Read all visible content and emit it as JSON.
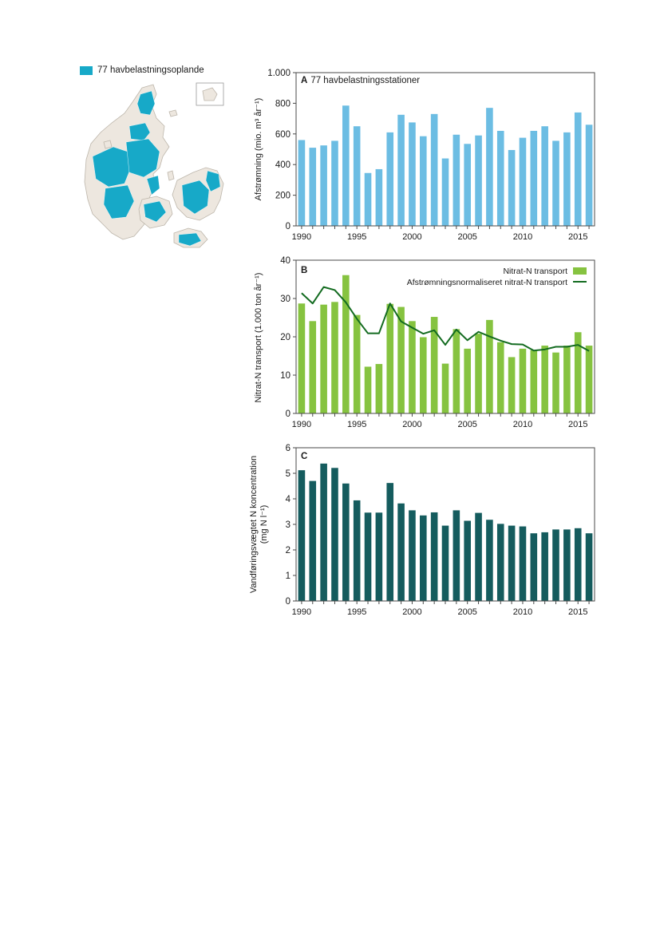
{
  "map": {
    "legend_label": "77 havbelastningsoplande",
    "colors": {
      "land": "#ede7df",
      "border": "#bdb6ab",
      "catchment": "#17a9c8",
      "inset_frame": "#9a9a9a"
    }
  },
  "chart_data": [
    {
      "id": "A",
      "type": "bar",
      "panel_letter": "A",
      "title": "77 havbelastningsstationer",
      "ylabel": "Afstrømning (mio. m³ år⁻¹)",
      "xlabel": "",
      "ylim": [
        0,
        1000
      ],
      "yticks": [
        0,
        200,
        400,
        600,
        800,
        1000
      ],
      "ytick_labels": [
        "0",
        "200",
        "400",
        "600",
        "800",
        "1.000"
      ],
      "xtick_years": [
        1990,
        1995,
        2000,
        2005,
        2010,
        2015
      ],
      "x": [
        1990,
        1991,
        1992,
        1993,
        1994,
        1995,
        1996,
        1997,
        1998,
        1999,
        2000,
        2001,
        2002,
        2003,
        2004,
        2005,
        2006,
        2007,
        2008,
        2009,
        2010,
        2011,
        2012,
        2013,
        2014,
        2015,
        2016
      ],
      "series": [
        {
          "values": [
            560,
            510,
            525,
            555,
            785,
            650,
            345,
            370,
            610,
            725,
            675,
            585,
            730,
            440,
            595,
            535,
            590,
            770,
            620,
            495,
            575,
            620,
            650,
            555,
            610,
            740,
            660
          ],
          "color": "#6cbde3"
        }
      ]
    },
    {
      "id": "B",
      "type": "bar",
      "panel_letter": "B",
      "title": "",
      "ylabel": "Nitrat-N transport (1.000 ton år⁻¹)",
      "xlabel": "",
      "ylim": [
        0,
        40
      ],
      "yticks": [
        0,
        10,
        20,
        30,
        40
      ],
      "ytick_labels": [
        "0",
        "10",
        "20",
        "30",
        "40"
      ],
      "xtick_years": [
        1990,
        1995,
        2000,
        2005,
        2010,
        2015
      ],
      "x": [
        1990,
        1991,
        1992,
        1993,
        1994,
        1995,
        1996,
        1997,
        1998,
        1999,
        2000,
        2001,
        2002,
        2003,
        2004,
        2005,
        2006,
        2007,
        2008,
        2009,
        2010,
        2011,
        2012,
        2013,
        2014,
        2015,
        2016
      ],
      "legend_position": "top-right",
      "series": [
        {
          "name": "Nitrat-N transport",
          "type": "bar",
          "values": [
            28.7,
            24.1,
            28.4,
            29.1,
            36.1,
            25.7,
            12.2,
            12.9,
            28.6,
            27.8,
            24.1,
            19.9,
            25.2,
            13.0,
            22.0,
            16.9,
            20.8,
            24.4,
            18.6,
            14.7,
            16.9,
            16.5,
            17.7,
            15.9,
            17.7,
            21.2,
            17.7
          ],
          "color": "#86c340"
        },
        {
          "name": "Afstrømningsnormaliseret nitrat-N transport",
          "type": "line",
          "values": [
            31.4,
            28.7,
            33.0,
            32.2,
            29.0,
            24.7,
            20.9,
            20.9,
            28.7,
            24.0,
            22.4,
            20.8,
            21.7,
            17.9,
            21.9,
            19.1,
            21.3,
            20.1,
            19.0,
            18.1,
            18.0,
            16.4,
            16.7,
            17.4,
            17.4,
            17.9,
            16.3
          ],
          "color": "#136b20"
        }
      ]
    },
    {
      "id": "C",
      "type": "bar",
      "panel_letter": "C",
      "title": "",
      "ylabel": "Vandføringsvægtet N koncentration",
      "ylabel2": "(mg N l⁻¹)",
      "xlabel": "",
      "ylim": [
        0,
        6
      ],
      "yticks": [
        0,
        1,
        2,
        3,
        4,
        5,
        6
      ],
      "ytick_labels": [
        "0",
        "1",
        "2",
        "3",
        "4",
        "5",
        "6"
      ],
      "xtick_years": [
        1990,
        1995,
        2000,
        2005,
        2010,
        2015
      ],
      "x": [
        1990,
        1991,
        1992,
        1993,
        1994,
        1995,
        1996,
        1997,
        1998,
        1999,
        2000,
        2001,
        2002,
        2003,
        2004,
        2005,
        2006,
        2007,
        2008,
        2009,
        2010,
        2011,
        2012,
        2013,
        2014,
        2015,
        2016
      ],
      "series": [
        {
          "values": [
            5.12,
            4.7,
            5.38,
            5.21,
            4.6,
            3.94,
            3.46,
            3.46,
            4.62,
            3.82,
            3.55,
            3.35,
            3.47,
            2.95,
            3.55,
            3.14,
            3.45,
            3.18,
            3.02,
            2.95,
            2.92,
            2.65,
            2.69,
            2.8,
            2.8,
            2.85,
            2.65
          ],
          "color": "#155c5e"
        }
      ]
    }
  ]
}
